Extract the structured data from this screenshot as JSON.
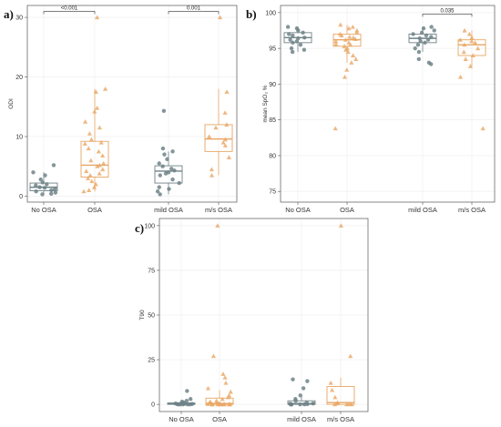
{
  "colors": {
    "no_osa": "#6f8287",
    "osa": "#e8a664"
  },
  "chart_data": [
    {
      "type": "boxplot",
      "panel": "a)",
      "ylabel": "ODI",
      "ylim": [
        -1,
        32
      ],
      "yticks": [
        "0",
        "10",
        "20",
        "30"
      ],
      "categories": [
        "No OSA",
        "OSA",
        "mild OSA",
        "m/s OSA"
      ],
      "boxes": [
        {
          "category": "No OSA",
          "q1": 0.9,
          "median": 1.5,
          "q3": 2.2,
          "min": 0.3,
          "max": 4.0
        },
        {
          "category": "OSA",
          "q1": 3.2,
          "median": 5.2,
          "q3": 9.2,
          "min": 0.8,
          "max": 18.0
        },
        {
          "category": "mild OSA",
          "q1": 2.2,
          "median": 4.2,
          "q3": 5.1,
          "min": 0.3,
          "max": 7.5
        },
        {
          "category": "m/s OSA",
          "q1": 7.5,
          "median": 9.6,
          "q3": 12.0,
          "min": 3.5,
          "max": 18.0
        }
      ],
      "points": [
        [
          5.2,
          4.0,
          3.5,
          2.8,
          2.3,
          2.0,
          1.8,
          1.5,
          1.4,
          1.2,
          1.0,
          0.8,
          0.6,
          0.4,
          0.3
        ],
        [
          30.0,
          18.0,
          17.5,
          14.8,
          14.2,
          12.5,
          11.5,
          10.5,
          9.5,
          9.0,
          8.8,
          8.0,
          7.5,
          6.8,
          6.0,
          5.5,
          5.2,
          5.0,
          4.5,
          4.2,
          3.8,
          3.5,
          3.0,
          2.5,
          2.0,
          1.5,
          1.0,
          0.8
        ],
        [
          14.3,
          8.0,
          7.5,
          7.0,
          6.2,
          5.5,
          5.0,
          4.6,
          4.3,
          4.0,
          3.8,
          3.5,
          2.8,
          2.2,
          1.5,
          1.2,
          0.8,
          0.3
        ],
        [
          30.0,
          17.5,
          14.0,
          12.0,
          11.5,
          10.0,
          9.5,
          9.0,
          8.5,
          6.5,
          4.5,
          3.5
        ]
      ],
      "comparisons": [
        {
          "from": "No OSA",
          "to": "OSA",
          "label": "<0.001",
          "y": 31
        },
        {
          "from": "mild OSA",
          "to": "m/s OSA",
          "label": "0.001",
          "y": 31
        }
      ]
    },
    {
      "type": "boxplot",
      "panel": "b)",
      "ylabel": "mean SpO₂ %",
      "ylim": [
        73.5,
        101
      ],
      "yticks": [
        "75",
        "80",
        "85",
        "90",
        "95",
        "100"
      ],
      "categories": [
        "No OSA",
        "OSA",
        "mild OSA",
        "m/s OSA"
      ],
      "boxes": [
        {
          "category": "No OSA",
          "q1": 95.8,
          "median": 96.5,
          "q3": 97.2,
          "min": 94.5,
          "max": 98.0
        },
        {
          "category": "OSA",
          "q1": 95.3,
          "median": 96.2,
          "q3": 97.0,
          "min": 93.0,
          "max": 98.3
        },
        {
          "category": "mild OSA",
          "q1": 95.8,
          "median": 96.4,
          "q3": 97.0,
          "min": 94.5,
          "max": 97.8
        },
        {
          "category": "m/s OSA",
          "q1": 94.0,
          "median": 95.5,
          "q3": 96.2,
          "min": 92.5,
          "max": 97.5
        }
      ],
      "points": [
        [
          98.0,
          97.8,
          97.5,
          97.2,
          97.0,
          96.8,
          96.5,
          96.4,
          96.2,
          96.0,
          95.8,
          95.5,
          95.0,
          94.8,
          94.5
        ],
        [
          98.3,
          98.0,
          97.8,
          97.5,
          97.2,
          97.0,
          96.8,
          96.6,
          96.5,
          96.3,
          96.2,
          96.0,
          95.8,
          95.6,
          95.5,
          95.3,
          95.0,
          94.8,
          94.5,
          94.0,
          93.5,
          93.0,
          92.0,
          91.0,
          83.8
        ],
        [
          98.0,
          97.8,
          97.5,
          97.2,
          97.0,
          96.8,
          96.6,
          96.4,
          96.2,
          96.0,
          95.8,
          95.5,
          95.0,
          94.5,
          93.5,
          93.0,
          92.8
        ],
        [
          97.5,
          97.0,
          96.5,
          96.2,
          96.0,
          95.8,
          95.5,
          95.0,
          94.5,
          94.0,
          93.5,
          92.5,
          91.0,
          83.8
        ]
      ],
      "comparisons": [
        {
          "from": "mild OSA",
          "to": "m/s OSA",
          "label": "0.035",
          "y": 99.8
        }
      ]
    },
    {
      "type": "boxplot",
      "panel": "c)",
      "ylabel": "T90",
      "ylim": [
        -4,
        104
      ],
      "yticks": [
        "0",
        "25",
        "50",
        "75",
        "100"
      ],
      "categories": [
        "No OSA",
        "OSA",
        "mild OSA",
        "m/s OSA"
      ],
      "boxes": [
        {
          "category": "No OSA",
          "q1": 0.0,
          "median": 0.2,
          "q3": 0.8,
          "min": 0.0,
          "max": 1.5
        },
        {
          "category": "OSA",
          "q1": 0.0,
          "median": 0.5,
          "q3": 3.5,
          "min": 0.0,
          "max": 8.0
        },
        {
          "category": "mild OSA",
          "q1": 0.0,
          "median": 0.5,
          "q3": 2.0,
          "min": 0.0,
          "max": 4.5
        },
        {
          "category": "m/s OSA",
          "q1": 0.0,
          "median": 1.0,
          "q3": 10.0,
          "min": 0.0,
          "max": 15.0
        }
      ],
      "points": [
        [
          7.5,
          3.0,
          2.0,
          1.5,
          1.0,
          0.8,
          0.5,
          0.3,
          0.2,
          0.1,
          0.0,
          0.0,
          0.0,
          0.0,
          0.0
        ],
        [
          100.0,
          27.0,
          17.0,
          15.0,
          12.0,
          9.0,
          7.0,
          5.0,
          4.0,
          3.0,
          2.0,
          1.5,
          1.0,
          0.8,
          0.5,
          0.3,
          0.2,
          0.1,
          0.0,
          0.0,
          0.0,
          0.0,
          0.0,
          0.0,
          0.0,
          0.0
        ],
        [
          14.0,
          13.0,
          9.0,
          5.0,
          3.0,
          2.0,
          1.0,
          0.5,
          0.3,
          0.2,
          0.1,
          0.0,
          0.0,
          0.0,
          0.0,
          0.0,
          0.0
        ],
        [
          100.0,
          27.0,
          12.0,
          8.0,
          4.0,
          1.0,
          0.5,
          0.2,
          0.0,
          0.0,
          0.0
        ]
      ],
      "comparisons": []
    }
  ]
}
